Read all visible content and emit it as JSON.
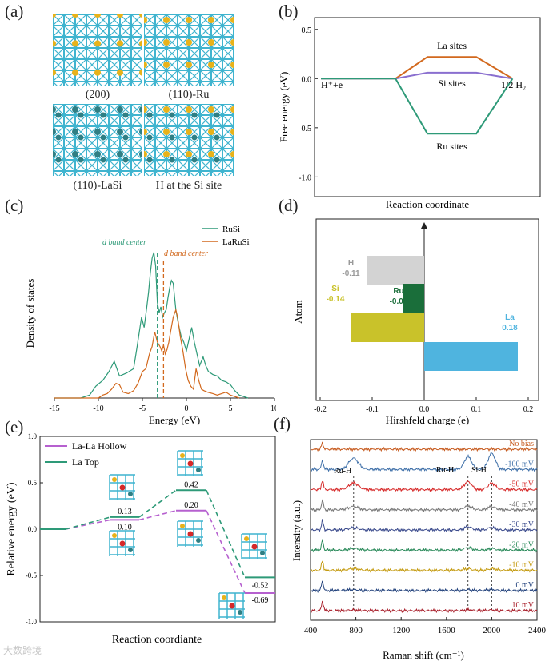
{
  "panels": {
    "a": "(a)",
    "b": "(b)",
    "c": "(c)",
    "d": "(d)",
    "e": "(e)",
    "f": "(f)"
  },
  "panel_a": {
    "captions": [
      "(200)",
      "(110)-Ru",
      "(110)-LaSi",
      "H at the Si site"
    ],
    "colors": {
      "frame": "#3fb4cf",
      "si_atom": "#e8b21a",
      "ru_atom": "#2f7f84"
    }
  },
  "watermark": "大数跨境",
  "chart_data": [
    {
      "id": "b",
      "type": "line",
      "xlabel": "Reaction coordinate",
      "ylabel": "Free energy (eV)",
      "ylim": [
        -1.2,
        0.62
      ],
      "yticks": [
        0.5,
        0.0,
        -0.5,
        -1.0
      ],
      "ytick_labels": [
        "0.5",
        "0.0",
        "-0.5",
        "-1.0"
      ],
      "left_label": "H⁺+e",
      "right_label": "1/2 H₂",
      "x": [
        0,
        1,
        2,
        3,
        4
      ],
      "series": [
        {
          "name": "La sites",
          "color": "#d2691e",
          "values": [
            0,
            0,
            0.22,
            0.22,
            0
          ]
        },
        {
          "name": "Si sites",
          "color": "#8a6fcf",
          "values": [
            0,
            0,
            0.06,
            0.06,
            0
          ]
        },
        {
          "name": "Ru sites",
          "color": "#2e9a78",
          "values": [
            0,
            0,
            -0.56,
            -0.56,
            0
          ]
        }
      ]
    },
    {
      "id": "c",
      "type": "line",
      "xlabel": "Energy (eV)",
      "ylabel": "Density of states",
      "xlim": [
        -15,
        10
      ],
      "xticks": [
        -15,
        -10,
        -5,
        0,
        5,
        10
      ],
      "annotations": [
        {
          "text": "d band center",
          "color": "#2e9a78"
        },
        {
          "text": "d band center",
          "color": "#d2691e"
        }
      ],
      "band_centers": {
        "RuSi": -3.3,
        "LaRuSi": -2.6
      },
      "series": [
        {
          "name": "RuSi",
          "color": "#2e9a78",
          "x": [
            -15,
            -12,
            -11,
            -10.3,
            -9.5,
            -8.8,
            -8.2,
            -7.6,
            -6.8,
            -6,
            -5.6,
            -5.1,
            -4.8,
            -4.5,
            -4.3,
            -4.1,
            -3.9,
            -3.7,
            -3.5,
            -3.3,
            -3.1,
            -2.9,
            -2.7,
            -2.5,
            -2.3,
            -2.1,
            -1.9,
            -1.7,
            -1.5,
            -1.2,
            -0.9,
            -0.6,
            -0.3,
            0,
            0.3,
            0.6,
            0.9,
            1.2,
            1.5,
            1.9,
            2.2,
            2.5,
            3,
            3.5,
            4,
            4.5,
            5,
            5.5,
            6,
            6.5,
            7
          ],
          "values": [
            0,
            0,
            0.02,
            0.08,
            0.12,
            0.18,
            0.25,
            0.15,
            0.17,
            0.2,
            0.35,
            0.55,
            0.48,
            0.62,
            0.72,
            0.85,
            0.95,
            0.99,
            0.9,
            0.65,
            0.58,
            0.62,
            0.55,
            0.58,
            0.6,
            0.68,
            0.75,
            0.8,
            0.78,
            0.6,
            0.5,
            0.42,
            0.38,
            0.32,
            0.4,
            0.48,
            0.38,
            0.3,
            0.22,
            0.28,
            0.22,
            0.18,
            0.16,
            0.15,
            0.12,
            0.11,
            0.09,
            0.05,
            0.02,
            0.01,
            0
          ]
        },
        {
          "name": "LaRuSi",
          "color": "#d2691e",
          "x": [
            -15,
            -10,
            -9.5,
            -9,
            -8.5,
            -8,
            -7.6,
            -7.2,
            -6.6,
            -6,
            -5.5,
            -5,
            -4.6,
            -4.2,
            -3.9,
            -3.6,
            -3.3,
            -3,
            -2.8,
            -2.6,
            -2.4,
            -2.2,
            -2,
            -1.8,
            -1.5,
            -1.2,
            -1,
            -0.7,
            -0.4,
            -0.1,
            0.2,
            0.5,
            0.8,
            1.1,
            1.4,
            1.7,
            2,
            2.4,
            3,
            3.5,
            4,
            4.5,
            5,
            5.5,
            6
          ],
          "values": [
            0,
            0,
            0.02,
            0.03,
            0.06,
            0.1,
            0.09,
            0.04,
            0.03,
            0.05,
            0.1,
            0.18,
            0.2,
            0.3,
            0.35,
            0.45,
            0.38,
            0.35,
            0.32,
            0.36,
            0.3,
            0.33,
            0.38,
            0.45,
            0.55,
            0.6,
            0.55,
            0.42,
            0.32,
            0.2,
            0.12,
            0.08,
            0.06,
            0.2,
            0.12,
            0.06,
            0.05,
            0.04,
            0.03,
            0.02,
            0.03,
            0.04,
            0.02,
            0.01,
            0
          ]
        }
      ]
    },
    {
      "id": "d",
      "type": "bar",
      "orientation": "horizontal",
      "xlabel": "Hirshfeld charge (e)",
      "ylabel": "Atom",
      "xlim": [
        -0.2,
        0.2
      ],
      "xticks": [
        -0.2,
        -0.1,
        0.0,
        0.1,
        0.2
      ],
      "xtick_labels": [
        "-0.2",
        "-0.1",
        "0.0",
        "0.1",
        "0.2"
      ],
      "categories": [
        "H",
        "Ru",
        "Si",
        "La"
      ],
      "values": [
        -0.11,
        -0.04,
        -0.14,
        0.18
      ],
      "value_labels": [
        "-0.11",
        "-0.04",
        "-0.14",
        "0.18"
      ],
      "colors": [
        "#d3d3d3",
        "#1a6e3a",
        "#c9c22a",
        "#4fb4df"
      ],
      "label_colors": [
        "#9a9a9a",
        "#1a6e3a",
        "#c9c22a",
        "#4fb4df"
      ]
    },
    {
      "id": "e",
      "type": "line",
      "xlabel": "Reaction coordiante",
      "ylabel": "Relative energy (eV)",
      "ylim": [
        -1.0,
        1.0
      ],
      "yticks": [
        1.0,
        0.5,
        0.0,
        -0.5,
        -1.0
      ],
      "ytick_labels": [
        "1.0",
        "0.5",
        "0.0",
        "-0.5",
        "-1.0"
      ],
      "series": [
        {
          "name": "La-La Hollow",
          "color": "#b660cf",
          "levels": [
            0,
            0.1,
            0.2,
            -0.69
          ],
          "labels": [
            "",
            "0.10",
            "0.20",
            "-0.69"
          ]
        },
        {
          "name": "La Top",
          "color": "#2e9a78",
          "levels": [
            0,
            0.13,
            0.42,
            -0.52
          ],
          "labels": [
            "",
            "0.13",
            "0.42",
            "-0.52"
          ]
        }
      ]
    },
    {
      "id": "f",
      "type": "line",
      "xlabel": "Raman shift (cm⁻¹)",
      "ylabel": "Intensity (a.u.)",
      "xlim": [
        400,
        2400
      ],
      "xticks": [
        400,
        800,
        1200,
        1600,
        2000,
        2400
      ],
      "annotations": [
        "Ru-H",
        "Ru-H",
        "Si-H"
      ],
      "reference_lines_x": [
        780,
        1790,
        2000
      ],
      "series": [
        {
          "name": "No bias",
          "color": "#c65a1e"
        },
        {
          "name": "-100 mV",
          "color": "#3e6fa8"
        },
        {
          "name": "-50 mV",
          "color": "#d62828"
        },
        {
          "name": "-40 mV",
          "color": "#777777"
        },
        {
          "name": "-30 mV",
          "color": "#3a4a8c"
        },
        {
          "name": "-20 mV",
          "color": "#2a8a5a"
        },
        {
          "name": "-10 mV",
          "color": "#c49a0e"
        },
        {
          "name": "0 mV",
          "color": "#1f3f7a"
        },
        {
          "name": "10 mV",
          "color": "#a81e2a"
        }
      ]
    }
  ]
}
